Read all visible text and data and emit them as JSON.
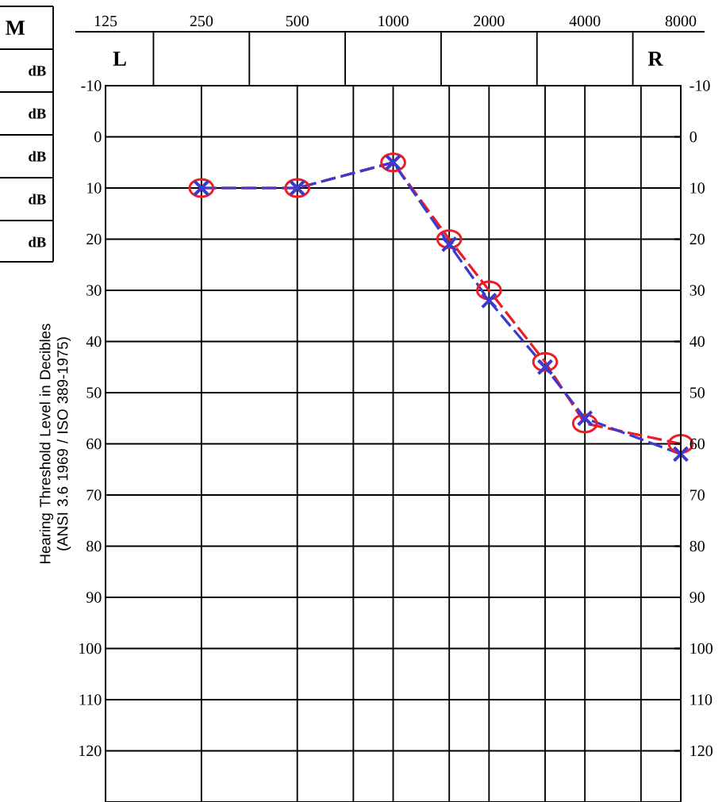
{
  "chart_data": {
    "type": "line",
    "ylabel": "Hearing Threshold Level in Decibles (ANSI 3.6 1969 / ISO 389-1975)",
    "annotations": [
      "L",
      "R",
      "M",
      "dB",
      "dB",
      "dB",
      "dB",
      "dB"
    ],
    "log": "x",
    "xlim": [
      125,
      8000
    ],
    "xticks": [
      125,
      250,
      500,
      {
        "value": 750,
        "label": null
      },
      1000,
      {
        "value": 1500,
        "label": null
      },
      2000,
      {
        "value": 3000,
        "label": null
      },
      4000,
      {
        "value": 6000,
        "label": null
      },
      8000
    ],
    "ylim": [
      130,
      -10
    ],
    "yticks": [
      -10,
      0,
      10,
      20,
      30,
      40,
      50,
      60,
      70,
      80,
      90,
      100,
      110,
      120
    ],
    "y2lim": [
      130,
      -10
    ],
    "y2ticks": [
      -10,
      0,
      10,
      20,
      30,
      40,
      50,
      60,
      70,
      80,
      90,
      100,
      110,
      120
    ],
    "grid": true,
    "series": [
      {
        "color": "#ee1c25",
        "marker": "circle",
        "line_style": "dashed",
        "x": [
          250,
          500,
          1000,
          1500,
          2000,
          3000,
          4000,
          8000
        ],
        "values": [
          10,
          10,
          5,
          20,
          30,
          44,
          56,
          60
        ]
      },
      {
        "color": "#3b3bd0",
        "marker": "cross",
        "line_style": "dashed",
        "x": [
          250,
          500,
          1000,
          1500,
          2000,
          3000,
          4000,
          8000
        ],
        "values": [
          10,
          10,
          5,
          21,
          32,
          45,
          55,
          62
        ]
      }
    ]
  }
}
